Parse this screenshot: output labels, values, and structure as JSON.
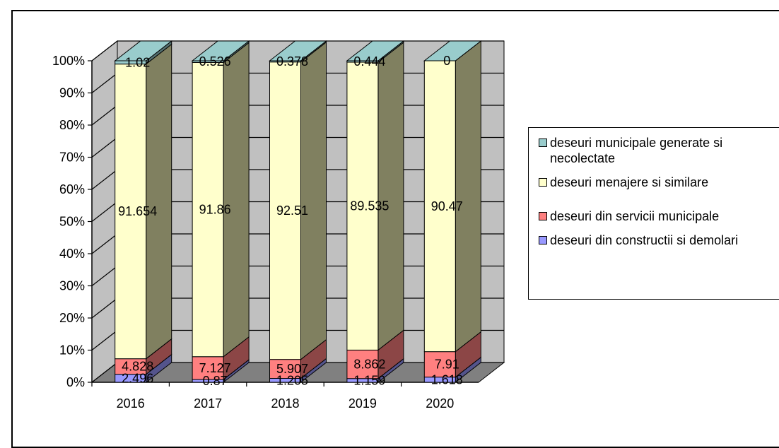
{
  "chart_data": {
    "type": "bar",
    "stacked": true,
    "percent_stacked": true,
    "three_d": true,
    "categories": [
      "2016",
      "2017",
      "2018",
      "2019",
      "2020"
    ],
    "series": [
      {
        "name": "deseuri din constructii si demolari",
        "values": [
          2.496,
          0.87,
          1.205,
          1.159,
          1.618
        ],
        "labels": [
          "2.496",
          "0.87",
          "1.205",
          "1.159",
          "1.618"
        ],
        "color": "#9999FF"
      },
      {
        "name": "deseuri din servicii municipale",
        "values": [
          4.828,
          7.127,
          5.907,
          8.862,
          7.91
        ],
        "labels": [
          "4.828",
          "7.127",
          "5.907",
          "8.862",
          "7.91"
        ],
        "color": "#FF8080"
      },
      {
        "name": "deseuri menajere si similare",
        "values": [
          91.654,
          91.86,
          92.51,
          89.535,
          90.47
        ],
        "labels": [
          "91.654",
          "91.86",
          "92.51",
          "89.535",
          "90.47"
        ],
        "color": "#FFFFCC"
      },
      {
        "name": "deseuri municipale generate si necolectate",
        "values": [
          1.02,
          0.526,
          0.378,
          0.444,
          0
        ],
        "labels": [
          "1.02",
          "0.526",
          "0.378",
          "0.444",
          "0"
        ],
        "color": "#99CCCC"
      }
    ],
    "y_ticks": [
      "0%",
      "10%",
      "20%",
      "30%",
      "40%",
      "50%",
      "60%",
      "70%",
      "80%",
      "90%",
      "100%"
    ],
    "ylim": [
      0,
      100
    ],
    "grid": true,
    "legend_position": "right",
    "colors": {
      "wall": "#C0C0C0",
      "floor": "#808080",
      "bar_side": "#808060"
    }
  }
}
